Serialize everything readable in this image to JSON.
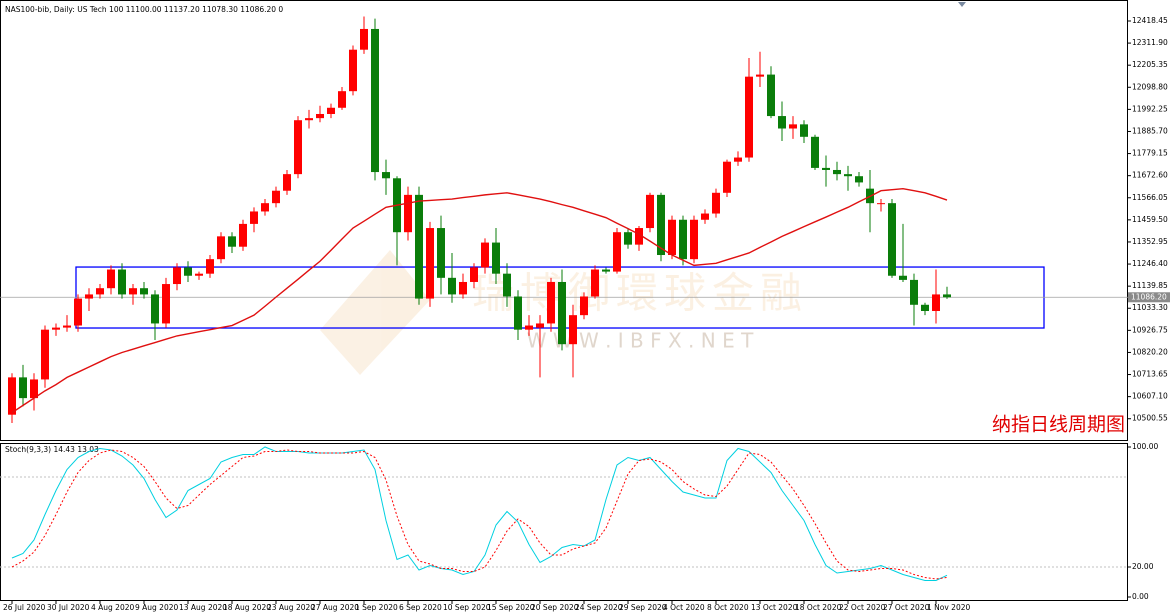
{
  "chart_data": [
    {
      "type": "candlestick",
      "header": "NAS100-bib, Daily: US Tech 100  11100.00 11137.20 11078.30 11086.20  0",
      "categories": [
        "26 Jul 2020",
        null,
        null,
        null,
        "30 Jul 2020",
        null,
        null,
        null,
        "4 Aug 2020",
        null,
        null,
        null,
        "9 Aug 2020",
        null,
        null,
        null,
        "13 Aug 2020",
        null,
        null,
        null,
        "18 Aug 2020",
        null,
        null,
        null,
        "23 Aug 2020",
        null,
        null,
        null,
        "27 Aug 2020",
        null,
        null,
        null,
        "1 Sep 2020",
        null,
        null,
        null,
        "6 Sep 2020",
        null,
        null,
        null,
        "10 Sep 2020",
        null,
        null,
        null,
        "15 Sep 2020",
        null,
        null,
        null,
        "20 Sep 2020",
        null,
        null,
        null,
        "24 Sep 2020",
        null,
        null,
        null,
        "29 Sep 2020",
        null,
        null,
        null,
        "4 Oct 2020",
        null,
        null,
        null,
        "8 Oct 2020",
        null,
        null,
        null,
        "13 Oct 2020",
        null,
        null,
        null,
        "18 Oct 2020",
        null,
        null,
        null,
        "22 Oct 2020",
        null,
        null,
        null,
        "27 Oct 2020",
        null,
        null,
        null,
        "1 Nov 2020",
        null
      ],
      "candles": [
        [
          10520,
          10720,
          10480,
          10700
        ],
        [
          10700,
          10760,
          10560,
          10600
        ],
        [
          10600,
          10720,
          10540,
          10690
        ],
        [
          10690,
          10950,
          10650,
          10930
        ],
        [
          10930,
          10960,
          10900,
          10940
        ],
        [
          10940,
          11000,
          10920,
          10950
        ],
        [
          10950,
          11100,
          10920,
          11080
        ],
        [
          11080,
          11130,
          11020,
          11100
        ],
        [
          11100,
          11150,
          11080,
          11130
        ],
        [
          11130,
          11240,
          11100,
          11220
        ],
        [
          11220,
          11250,
          11080,
          11100
        ],
        [
          11100,
          11150,
          11050,
          11130
        ],
        [
          11130,
          11160,
          11080,
          11100
        ],
        [
          11100,
          11120,
          10880,
          10960
        ],
        [
          10960,
          11180,
          10940,
          11150
        ],
        [
          11150,
          11250,
          11120,
          11230
        ],
        [
          11230,
          11260,
          11160,
          11190
        ],
        [
          11190,
          11210,
          11170,
          11200
        ],
        [
          11200,
          11290,
          11180,
          11270
        ],
        [
          11270,
          11400,
          11250,
          11380
        ],
        [
          11380,
          11400,
          11300,
          11330
        ],
        [
          11330,
          11460,
          11310,
          11440
        ],
        [
          11440,
          11520,
          11400,
          11500
        ],
        [
          11500,
          11560,
          11480,
          11540
        ],
        [
          11540,
          11620,
          11520,
          11600
        ],
        [
          11600,
          11700,
          11580,
          11680
        ],
        [
          11680,
          11960,
          11660,
          11940
        ],
        [
          11940,
          11990,
          11900,
          11950
        ],
        [
          11950,
          12010,
          11930,
          11970
        ],
        [
          11970,
          12020,
          11950,
          12000
        ],
        [
          12000,
          12100,
          11990,
          12080
        ],
        [
          12080,
          12300,
          12060,
          12280
        ],
        [
          12280,
          12440,
          12260,
          12380
        ],
        [
          12380,
          12430,
          11650,
          11690
        ],
        [
          11690,
          11750,
          11580,
          11660
        ],
        [
          11660,
          11670,
          11240,
          11400
        ],
        [
          11400,
          11620,
          11360,
          11580
        ],
        [
          11580,
          11620,
          11050,
          11080
        ],
        [
          11080,
          11450,
          11040,
          11420
        ],
        [
          11420,
          11480,
          11100,
          11180
        ],
        [
          11180,
          11300,
          11060,
          11100
        ],
        [
          11100,
          11200,
          11080,
          11160
        ],
        [
          11160,
          11250,
          11130,
          11230
        ],
        [
          11230,
          11370,
          11200,
          11350
        ],
        [
          11350,
          11420,
          11150,
          11200
        ],
        [
          11200,
          11250,
          11040,
          11090
        ],
        [
          11090,
          11120,
          10880,
          10930
        ],
        [
          10930,
          11000,
          10900,
          10950
        ],
        [
          10940,
          11000,
          10700,
          10960
        ],
        [
          10960,
          11180,
          10920,
          11160
        ],
        [
          11160,
          11220,
          10830,
          10860
        ],
        [
          10860,
          11050,
          10700,
          11000
        ],
        [
          11000,
          11110,
          10980,
          11090
        ],
        [
          11090,
          11240,
          11080,
          11220
        ],
        [
          11220,
          11230,
          11200,
          11210
        ],
        [
          11210,
          11420,
          11200,
          11400
        ],
        [
          11400,
          11420,
          11320,
          11340
        ],
        [
          11340,
          11430,
          11310,
          11420
        ],
        [
          11420,
          11590,
          11400,
          11580
        ],
        [
          11580,
          11590,
          11260,
          11290
        ],
        [
          11290,
          11480,
          11270,
          11460
        ],
        [
          11460,
          11480,
          11240,
          11270
        ],
        [
          11270,
          11480,
          11250,
          11460
        ],
        [
          11460,
          11510,
          11440,
          11490
        ],
        [
          11490,
          11610,
          11470,
          11590
        ],
        [
          11590,
          11750,
          11570,
          11740
        ],
        [
          11740,
          11790,
          11720,
          11760
        ],
        [
          11760,
          12240,
          11740,
          12150
        ],
        [
          12150,
          12270,
          12100,
          12160
        ],
        [
          12160,
          12200,
          11950,
          11960
        ],
        [
          11960,
          12030,
          11840,
          11900
        ],
        [
          11900,
          11960,
          11850,
          11920
        ],
        [
          11920,
          11940,
          11830,
          11860
        ],
        [
          11860,
          11870,
          11700,
          11710
        ],
        [
          11710,
          11770,
          11620,
          11700
        ],
        [
          11700,
          11740,
          11650,
          11680
        ],
        [
          11680,
          11720,
          11600,
          11670
        ],
        [
          11670,
          11690,
          11620,
          11640
        ],
        [
          11610,
          11700,
          11400,
          11540
        ],
        [
          11540,
          11560,
          11500,
          11540
        ],
        [
          11540,
          11560,
          11180,
          11190
        ],
        [
          11190,
          11440,
          11160,
          11170
        ],
        [
          11170,
          11200,
          10950,
          11050
        ],
        [
          11050,
          11060,
          11000,
          11020
        ],
        [
          11020,
          11220,
          10960,
          11100
        ],
        [
          11100,
          11137.2,
          11078.3,
          11086.2
        ]
      ],
      "up_color": "#ff0000",
      "down_color": "#0a7d0a",
      "overlays": [
        {
          "color": "#e01010",
          "values": [
            10530,
            10565,
            10600,
            10635,
            10665,
            10700,
            10725,
            10750,
            10775,
            10800,
            10820,
            10836,
            10852,
            10868,
            10884,
            10900,
            10910,
            10920,
            10930,
            10940,
            10950,
            10975,
            11000,
            11043,
            11087,
            11130,
            11173,
            11217,
            11260,
            11313,
            11367,
            11420,
            11453,
            11487,
            11520,
            11530,
            11540,
            11550,
            11553,
            11557,
            11560,
            11567,
            11573,
            11580,
            11585,
            11590,
            11580,
            11570,
            11560,
            11547,
            11533,
            11520,
            11503,
            11487,
            11470,
            11443,
            11417,
            11390,
            11357,
            11323,
            11290,
            11265,
            11240,
            11245,
            11250,
            11267,
            11283,
            11300,
            11327,
            11353,
            11380,
            11403,
            11427,
            11450,
            11473,
            11497,
            11520,
            11547,
            11573,
            11600,
            11605,
            11610,
            11600,
            11590,
            11573,
            11555
          ]
        }
      ],
      "ylim": [
        10398,
        12510
      ],
      "yticks": [
        12418.45,
        {
          "value": 12311.9,
          "label": "12311.90"
        },
        12205.35,
        {
          "value": 12098.8,
          "label": "12098.80"
        },
        11992.25,
        {
          "value": 11885.7,
          "label": "11885.70"
        },
        11779.15,
        {
          "value": 11672.6,
          "label": "11672.60"
        },
        11566.05,
        {
          "value": 11459.5,
          "label": "11459.50"
        },
        11352.95,
        {
          "value": 11246.4,
          "label": "11246.40"
        },
        11139.85,
        {
          "value": 11033.3,
          "label": "11033.30"
        },
        10926.75,
        {
          "value": 10820.2,
          "label": "10820.20"
        },
        10713.65,
        {
          "value": 10607.1,
          "label": "10607.10"
        },
        10500.55
      ],
      "last_price": {
        "value": 11086.2,
        "label": "11086.20"
      },
      "zone": {
        "top": 11232,
        "bottom": 10938,
        "color": "#0000ff"
      },
      "annotation": "纳指日线周期图",
      "watermark": "W W W . I B F X . N E T"
    },
    {
      "type": "line",
      "header": "Stoch(9,3,3) 14.43 13.03",
      "series": [
        {
          "color": "#00d0e0",
          "dash": false,
          "values": [
            26,
            29,
            38,
            55,
            71,
            85,
            93,
            97,
            99,
            98,
            94,
            88,
            79,
            65,
            53,
            58,
            71,
            75,
            79,
            90,
            93,
            95,
            95,
            100,
            97,
            97,
            97,
            96,
            96,
            96,
            96,
            97,
            98,
            85,
            51,
            25,
            28,
            18,
            21,
            19,
            18,
            15,
            17,
            28,
            48,
            57,
            50,
            35,
            23,
            27,
            33,
            35,
            34,
            38,
            65,
            88,
            93,
            91,
            93,
            85,
            77,
            70,
            68,
            66,
            66,
            91,
            99,
            97,
            90,
            83,
            71,
            61,
            51,
            35,
            21,
            16,
            17,
            18,
            19,
            21,
            18,
            15,
            13,
            11,
            11,
            14.43
          ]
        },
        {
          "color": "#ff0000",
          "dash": true,
          "values": [
            20,
            24,
            30,
            41,
            55,
            70,
            83,
            91,
            96,
            98,
            97,
            93,
            87,
            77,
            66,
            59,
            61,
            68,
            75,
            81,
            87,
            93,
            94,
            97,
            97,
            98,
            97,
            97,
            96,
            96,
            96,
            96,
            97,
            93,
            78,
            54,
            35,
            24,
            22,
            19,
            19,
            17,
            17,
            20,
            31,
            44,
            52,
            47,
            36,
            28,
            28,
            32,
            34,
            36,
            46,
            64,
            82,
            91,
            92,
            90,
            85,
            77,
            72,
            68,
            67,
            74,
            85,
            96,
            95,
            90,
            81,
            72,
            61,
            49,
            36,
            24,
            18,
            17,
            18,
            19,
            19,
            18,
            15,
            13,
            12,
            13.03
          ]
        }
      ],
      "ylim": [
        -2,
        102
      ],
      "yticks": [
        {
          "value": 100,
          "label": "100.00"
        },
        {
          "value": 20,
          "label": "20.00"
        },
        {
          "value": 0,
          "label": "0.00"
        }
      ],
      "levels": [
        80,
        20
      ]
    }
  ]
}
